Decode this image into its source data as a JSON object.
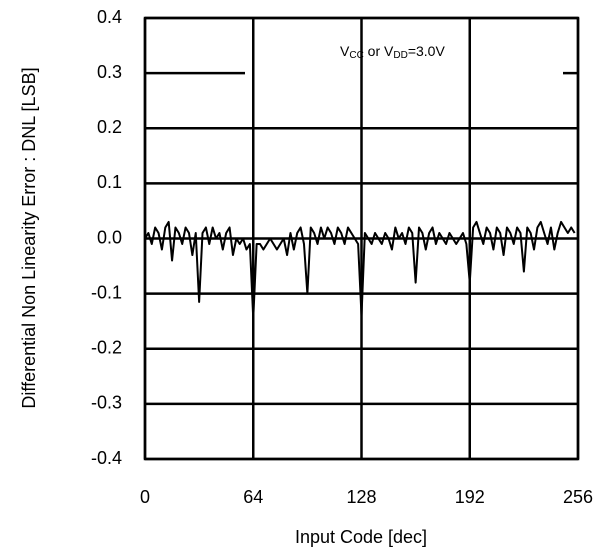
{
  "chart_data": {
    "type": "line",
    "xlabel": "Input Code [dec]",
    "ylabel": "Differential Non Linearity Error : DNL [LSB]",
    "annotation": [
      "V",
      "CC",
      " or  V",
      "DD",
      "=3.0V"
    ],
    "color": "#000000",
    "grid": true,
    "xlim": [
      0,
      256
    ],
    "xticks": [
      0,
      64,
      128,
      192,
      256
    ],
    "ylim": [
      -0.4,
      0.4
    ],
    "yticks": [
      0.4,
      0.3,
      0.2,
      0.1,
      {
        "value": 0,
        "label": "0.0"
      },
      -0.1,
      -0.2,
      -0.3,
      -0.4
    ],
    "x": [
      0,
      2,
      4,
      6,
      8,
      10,
      12,
      14,
      16,
      18,
      20,
      22,
      24,
      26,
      28,
      30,
      32,
      34,
      36,
      38,
      40,
      42,
      44,
      46,
      48,
      50,
      52,
      54,
      56,
      58,
      60,
      62,
      64,
      66,
      68,
      70,
      72,
      74,
      76,
      78,
      80,
      82,
      84,
      86,
      88,
      90,
      92,
      94,
      96,
      98,
      100,
      102,
      104,
      106,
      108,
      110,
      112,
      114,
      116,
      118,
      120,
      122,
      124,
      126,
      128,
      130,
      132,
      134,
      136,
      138,
      140,
      142,
      144,
      146,
      148,
      150,
      152,
      154,
      156,
      158,
      160,
      162,
      164,
      166,
      168,
      170,
      172,
      174,
      176,
      178,
      180,
      182,
      184,
      186,
      188,
      190,
      192,
      194,
      196,
      198,
      200,
      202,
      204,
      206,
      208,
      210,
      212,
      214,
      216,
      218,
      220,
      222,
      224,
      226,
      228,
      230,
      232,
      234,
      236,
      238,
      240,
      242,
      244,
      246,
      248,
      250,
      252,
      254
    ],
    "values": [
      0,
      0.01,
      -0.01,
      0.02,
      0.01,
      -0.02,
      0.02,
      0.03,
      -0.04,
      0.02,
      0.01,
      -0.01,
      0.02,
      0.01,
      -0.03,
      0.01,
      -0.115,
      0.01,
      0.02,
      -0.01,
      0.02,
      0,
      0.01,
      -0.02,
      0.01,
      0.02,
      -0.03,
      0,
      -0.01,
      0,
      -0.02,
      -0.01,
      -0.145,
      -0.01,
      -0.01,
      -0.02,
      -0.01,
      0,
      -0.01,
      -0.02,
      -0.01,
      0,
      -0.03,
      0.01,
      -0.02,
      0.01,
      0.02,
      -0.01,
      -0.1,
      0.02,
      0.01,
      -0.01,
      0.02,
      0,
      0.02,
      0.01,
      -0.01,
      0.02,
      0.01,
      -0.01,
      0.02,
      0.01,
      0,
      -0.01,
      -0.14,
      0.01,
      0,
      -0.01,
      0.01,
      0,
      -0.01,
      0.01,
      0,
      -0.02,
      0.02,
      0,
      0.01,
      -0.01,
      0.02,
      0.01,
      -0.08,
      0.02,
      0.01,
      -0.02,
      0.01,
      0.02,
      -0.01,
      0.01,
      0,
      -0.01,
      0.01,
      0,
      -0.01,
      0,
      0.01,
      -0.01,
      -0.08,
      0.02,
      0.03,
      0.01,
      -0.01,
      0.02,
      0.01,
      -0.02,
      0.02,
      0.01,
      -0.03,
      0.02,
      0.01,
      -0.01,
      0.02,
      0.01,
      -0.06,
      0.02,
      0.01,
      -0.02,
      0.02,
      0.03,
      0.01,
      -0.01,
      0.02,
      -0.02,
      0.01,
      0.03,
      0.02,
      0.01,
      0.02,
      0.01
    ]
  }
}
